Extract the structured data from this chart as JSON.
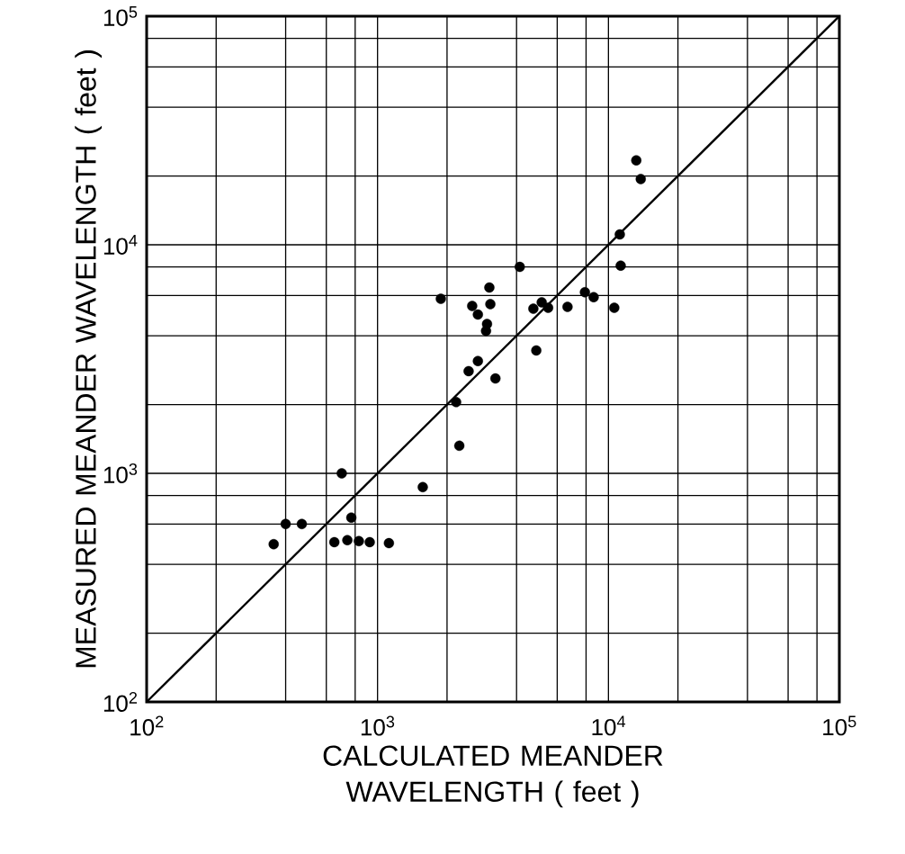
{
  "chart_data": {
    "type": "scatter",
    "xlabel": "CALCULATED MEANDER WAVELENGTH ( feet )",
    "ylabel": "MEASURED MEANDER WAVELENGTH ( feet )",
    "log": "xy",
    "grid": true,
    "xlim": [
      100,
      100000
    ],
    "ylim": [
      100,
      100000
    ],
    "xticks": [
      {
        "value": 100,
        "label": "10$^{2}$"
      },
      {
        "value": 200,
        "label": null
      },
      {
        "value": 400,
        "label": null
      },
      {
        "value": 600,
        "label": null
      },
      {
        "value": 800,
        "label": null
      },
      {
        "value": 1000,
        "label": "10$^{3}$"
      },
      {
        "value": 2000,
        "label": null
      },
      {
        "value": 4000,
        "label": null
      },
      {
        "value": 6000,
        "label": null
      },
      {
        "value": 8000,
        "label": null
      },
      {
        "value": 10000,
        "label": "10$^{4}$"
      },
      {
        "value": 20000,
        "label": null
      },
      {
        "value": 40000,
        "label": null
      },
      {
        "value": 60000,
        "label": null
      },
      {
        "value": 80000,
        "label": null
      },
      {
        "value": 100000,
        "label": "10$^{5}$"
      }
    ],
    "yticks": [
      {
        "value": 100,
        "label": "10$^{2}$"
      },
      {
        "value": 200,
        "label": null
      },
      {
        "value": 400,
        "label": null
      },
      {
        "value": 600,
        "label": null
      },
      {
        "value": 800,
        "label": null
      },
      {
        "value": 1000,
        "label": "10$^{3}$"
      },
      {
        "value": 2000,
        "label": null
      },
      {
        "value": 4000,
        "label": null
      },
      {
        "value": 6000,
        "label": null
      },
      {
        "value": 8000,
        "label": null
      },
      {
        "value": 10000,
        "label": "10$^{4}$"
      },
      {
        "value": 20000,
        "label": null
      },
      {
        "value": 40000,
        "label": null
      },
      {
        "value": 60000,
        "label": null
      },
      {
        "value": 80000,
        "label": null
      },
      {
        "value": 100000,
        "label": "10$^{5}$"
      }
    ],
    "series": [
      {
        "type": "scatter",
        "color": "#000000",
        "marker": "circle",
        "x": [
          355,
          400,
          470,
          650,
          700,
          740,
          770,
          830,
          925,
          1120,
          1570,
          2260,
          2190,
          1880,
          2480,
          2720,
          3240,
          2570,
          2720,
          3050,
          3080,
          2980,
          2950,
          4130,
          4870,
          4730,
          5140,
          5480,
          6650,
          7910,
          8630,
          10600,
          11200,
          11300,
          13200,
          13800
        ],
        "values": [
          490,
          600,
          600,
          500,
          1000,
          510,
          640,
          505,
          500,
          495,
          870,
          1320,
          2050,
          5800,
          2800,
          3100,
          2600,
          5400,
          4950,
          6500,
          5500,
          4500,
          4200,
          8000,
          3450,
          5250,
          5600,
          5300,
          5350,
          6200,
          5900,
          5300,
          11100,
          8100,
          23400,
          19400
        ]
      },
      {
        "type": "line",
        "color": "#000000",
        "line_style": "solid",
        "marker": "none",
        "x": [
          100,
          100000
        ],
        "values": [
          100,
          100000
        ]
      }
    ]
  }
}
